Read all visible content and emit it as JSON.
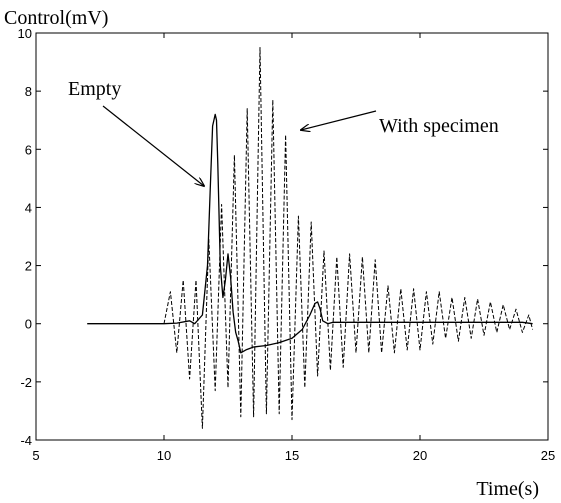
{
  "chart_data": {
    "type": "line",
    "title": "",
    "ylabel": "Control(mV)",
    "xlabel": "Time(s)",
    "xlim": [
      5,
      25
    ],
    "ylim": [
      -4,
      10
    ],
    "xticks": [
      5,
      10,
      15,
      20,
      25
    ],
    "yticks": [
      -4,
      -2,
      0,
      2,
      4,
      6,
      8,
      10
    ],
    "grid": false,
    "legend": "none",
    "annotations": [
      {
        "text": "Empty",
        "points_to": [
          11.9,
          4.6
        ]
      },
      {
        "text": "With specimen",
        "points_to": [
          15.2,
          6.6
        ]
      }
    ],
    "series": [
      {
        "style": "solid",
        "color": "#000000",
        "x": [
          7.0,
          8.0,
          9.0,
          10.0,
          10.5,
          11.0,
          11.2,
          11.5,
          11.7,
          11.8,
          11.9,
          12.0,
          12.05,
          12.1,
          12.2,
          12.3,
          12.4,
          12.5,
          12.6,
          12.7,
          12.8,
          12.9,
          13.0,
          13.2,
          13.5,
          14.0,
          14.5,
          15.0,
          15.4,
          15.7,
          15.9,
          16.0,
          16.1,
          16.2,
          16.4,
          16.6,
          17.0,
          18.0,
          19.0,
          20.0,
          21.0,
          22.0,
          23.0,
          24.0,
          24.4
        ],
        "y": [
          0.0,
          0.0,
          0.0,
          0.0,
          0.02,
          0.1,
          0.0,
          0.3,
          2.0,
          4.5,
          6.8,
          7.2,
          7.0,
          5.5,
          2.0,
          0.9,
          1.5,
          2.4,
          1.6,
          0.4,
          -0.3,
          -0.6,
          -1.0,
          -0.9,
          -0.8,
          -0.75,
          -0.65,
          -0.5,
          -0.2,
          0.3,
          0.7,
          0.75,
          0.5,
          0.1,
          0.0,
          0.05,
          0.05,
          0.05,
          0.05,
          0.05,
          0.05,
          0.05,
          0.05,
          0.05,
          0.0
        ]
      },
      {
        "style": "dashed",
        "color": "#000000",
        "x": [
          10.0,
          10.25,
          10.5,
          10.75,
          11.0,
          11.25,
          11.5,
          11.75,
          12.0,
          12.25,
          12.5,
          12.75,
          13.0,
          13.25,
          13.5,
          13.75,
          14.0,
          14.25,
          14.5,
          14.75,
          15.0,
          15.25,
          15.5,
          15.75,
          16.0,
          16.25,
          16.5,
          16.75,
          17.0,
          17.25,
          17.5,
          17.75,
          18.0,
          18.25,
          18.5,
          18.75,
          19.0,
          19.25,
          19.5,
          19.75,
          20.0,
          20.25,
          20.5,
          20.75,
          21.0,
          21.25,
          21.5,
          21.75,
          22.0,
          22.25,
          22.5,
          22.75,
          23.0,
          23.25,
          23.5,
          23.75,
          24.0,
          24.25,
          24.4
        ],
        "y": [
          0.0,
          1.1,
          -1.0,
          1.5,
          -1.9,
          1.5,
          -3.6,
          2.9,
          -2.3,
          4.1,
          -2.2,
          5.8,
          -3.2,
          7.4,
          -3.2,
          9.5,
          -3.1,
          7.7,
          -3.1,
          6.5,
          -3.3,
          3.7,
          -2.2,
          3.5,
          -1.8,
          2.5,
          -1.6,
          2.3,
          -1.5,
          2.4,
          -1.0,
          2.3,
          -1.0,
          2.2,
          -1.0,
          1.3,
          -1.0,
          1.2,
          -0.9,
          1.2,
          -0.9,
          1.1,
          -0.7,
          1.1,
          -0.5,
          0.9,
          -0.6,
          0.9,
          -0.5,
          0.85,
          -0.4,
          0.75,
          -0.3,
          0.65,
          -0.2,
          0.5,
          -0.3,
          0.3,
          -0.2
        ]
      }
    ]
  }
}
